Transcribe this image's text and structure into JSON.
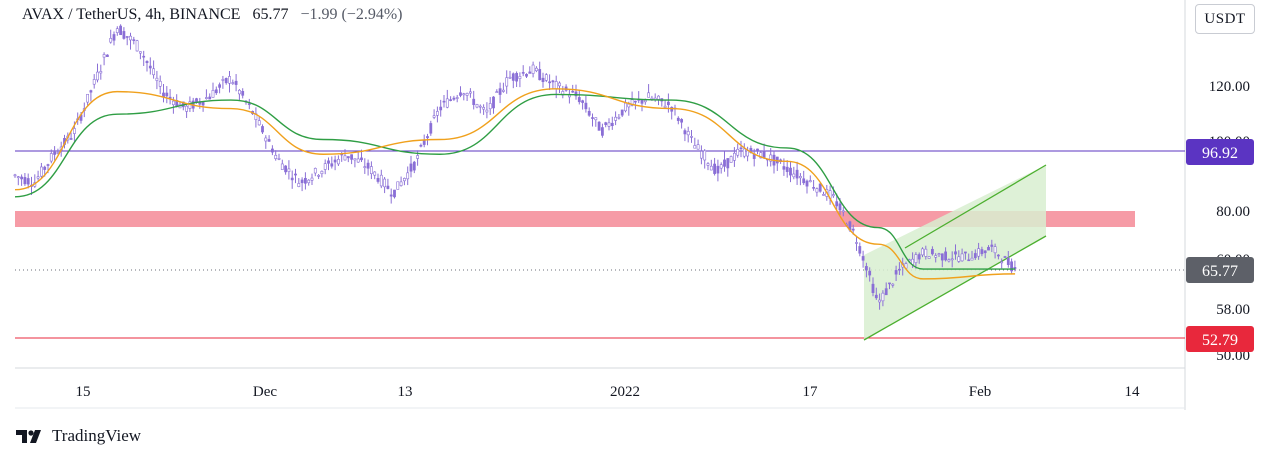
{
  "header": {
    "symbol": "AVAX / TetherUS, 4h, BINANCE",
    "last_value": "65.77",
    "change": "−1.99 (−2.94%)"
  },
  "currency_selector": {
    "label": "USDT"
  },
  "branding": {
    "name": "TradingView",
    "icon": "tradingview-logo-icon"
  },
  "chart_data": {
    "type": "line",
    "title": "AVAX / TetherUS, 4h, BINANCE",
    "xlabel": "",
    "ylabel": "",
    "x_ticks": [
      "15",
      "Dec",
      "13",
      "2022",
      "17",
      "Feb",
      "14"
    ],
    "y_ticks": [
      "120.00",
      "80.00",
      "58.00",
      "50.00"
    ],
    "y_ticks_partially_hidden": [
      "100.00",
      "60.00"
    ],
    "price_tags": [
      {
        "label": "96.92",
        "color": "#5b34c2",
        "role": "horizontal-resistance"
      },
      {
        "label": "65.77",
        "color": "#5d6068",
        "role": "last-price"
      },
      {
        "label": "52.79",
        "color": "#e8283c",
        "role": "horizontal-support"
      }
    ],
    "colors": {
      "candles": "#8a6fd6",
      "ma_fast": "#f0a11d",
      "ma_slow": "#2f9e44",
      "zone": "#f58a96",
      "channel": "#4caf2f",
      "channel_fill": "#d8efd0"
    },
    "support_zone": {
      "low": 76.5,
      "high": 79.5
    },
    "rising_channel": {
      "lower_start": {
        "x": "2022-01-24",
        "y": 52.8
      },
      "lower_end": {
        "x": "2022-02-10",
        "y": 71.0
      },
      "upper_start": {
        "x": "2022-01-24",
        "y": 70.5
      },
      "upper_end": {
        "x": "2022-02-10",
        "y": 93.5
      }
    },
    "series": [
      {
        "kind": "candles",
        "x": [
          "2021-11-08",
          "2021-11-10",
          "2021-11-12",
          "2021-11-14",
          "2021-11-16",
          "2021-11-18",
          "2021-11-20",
          "2021-11-22",
          "2021-11-24",
          "2021-11-26",
          "2021-11-28",
          "2021-11-30",
          "2021-12-02",
          "2021-12-04",
          "2021-12-06",
          "2021-12-08",
          "2021-12-10",
          "2021-12-12",
          "2021-12-14",
          "2021-12-16",
          "2021-12-18",
          "2021-12-20",
          "2021-12-22",
          "2021-12-24",
          "2021-12-26",
          "2021-12-28",
          "2021-12-30",
          "2022-01-01",
          "2022-01-03",
          "2022-01-05",
          "2022-01-07",
          "2022-01-09",
          "2022-01-11",
          "2022-01-13",
          "2022-01-15",
          "2022-01-17",
          "2022-01-19",
          "2022-01-21",
          "2022-01-23",
          "2022-01-25",
          "2022-01-27",
          "2022-01-29",
          "2022-01-31",
          "2022-02-02",
          "2022-02-04"
        ],
        "close": [
          90,
          88,
          96,
          103,
          121,
          142,
          134,
          118,
          112,
          116,
          123,
          110,
          95,
          88,
          92,
          96,
          92,
          85,
          94,
          112,
          119,
          110,
          123,
          126,
          120,
          116,
          104,
          112,
          116,
          113,
          99,
          91,
          97,
          96,
          92,
          88,
          84,
          74,
          59,
          66,
          70,
          69,
          69,
          71,
          66
        ]
      },
      {
        "kind": "line",
        "name": "",
        "x": [
          "2021-11-08",
          "2021-11-18",
          "2021-11-28",
          "2021-12-06",
          "2021-12-16",
          "2021-12-26",
          "2022-01-05",
          "2022-01-15",
          "2022-01-23",
          "2022-01-27",
          "2022-02-04"
        ],
        "values": [
          86,
          118,
          112,
          96,
          101,
          119,
          112,
          94,
          72,
          64,
          65
        ]
      },
      {
        "kind": "line",
        "name": "",
        "x": [
          "2021-11-08",
          "2021-11-18",
          "2021-11-28",
          "2021-12-06",
          "2021-12-16",
          "2021-12-26",
          "2022-01-05",
          "2022-01-15",
          "2022-01-23",
          "2022-01-27",
          "2022-02-04"
        ],
        "values": [
          84,
          110,
          115,
          101,
          96,
          117,
          115,
          98,
          76,
          66,
          66
        ]
      }
    ]
  }
}
